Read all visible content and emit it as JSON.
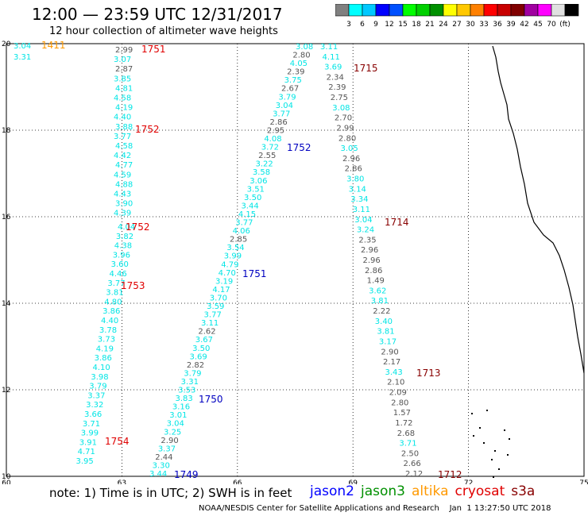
{
  "header": {
    "title": "12:00 — 23:59 UTC 12/31/2017",
    "subtitle": "12 hour collection of altimeter wave heights"
  },
  "legend": {
    "colors": [
      "#808080",
      "#00ffff",
      "#00c8ff",
      "#0000ff",
      "#0050ff",
      "#00ff00",
      "#00d000",
      "#009000",
      "#ffff00",
      "#ffc800",
      "#ff8000",
      "#ff0000",
      "#c80000",
      "#800000",
      "#a000a0",
      "#ff00ff",
      "#e0e0e0",
      "#000000"
    ],
    "labels": [
      "3",
      "6",
      "9",
      "12",
      "15",
      "18",
      "21",
      "24",
      "27",
      "30",
      "33",
      "36",
      "39",
      "42",
      "45",
      "70",
      "(ft)"
    ]
  },
  "axes": {
    "x_ticks": [
      "60",
      "63",
      "66",
      "69",
      "72",
      "75"
    ],
    "y_ticks": [
      "10",
      "12",
      "14",
      "16",
      "18",
      "20"
    ]
  },
  "track_colors": {
    "cyan": "#00e5e5",
    "gray": "#555555",
    "red": "#e00000",
    "darkred": "#880000",
    "blue": "#0000c0",
    "orange": "#ff9900"
  },
  "time_labels": [
    {
      "t": "1411",
      "c": "orange"
    },
    {
      "t": "1751",
      "c": "red"
    },
    {
      "t": "1752",
      "c": "red"
    },
    {
      "t": "1752",
      "c": "red"
    },
    {
      "t": "1753",
      "c": "red"
    },
    {
      "t": "1754",
      "c": "red"
    },
    {
      "t": "1715",
      "c": "darkred"
    },
    {
      "t": "1714",
      "c": "darkred"
    },
    {
      "t": "1713",
      "c": "darkred"
    },
    {
      "t": "1712",
      "c": "darkred"
    },
    {
      "t": "1752",
      "c": "blue"
    },
    {
      "t": "1751",
      "c": "blue"
    },
    {
      "t": "1750",
      "c": "blue"
    },
    {
      "t": "1749",
      "c": "blue"
    }
  ],
  "tracks": {
    "corner": [
      {
        "v": "3.04",
        "c": "cyan"
      },
      {
        "v": "3.31",
        "c": "cyan"
      }
    ],
    "a_top": [
      {
        "v": "2.99",
        "c": "gray"
      },
      {
        "v": "3.07",
        "c": "cyan"
      },
      {
        "v": "2.87",
        "c": "gray"
      },
      {
        "v": "3.85",
        "c": "cyan"
      },
      {
        "v": "4.81",
        "c": "cyan"
      },
      {
        "v": "4.58",
        "c": "cyan"
      },
      {
        "v": "4.19",
        "c": "cyan"
      },
      {
        "v": "4.40",
        "c": "cyan"
      },
      {
        "v": "3.88",
        "c": "cyan"
      },
      {
        "v": "3.77",
        "c": "cyan"
      },
      {
        "v": "4.58",
        "c": "cyan"
      },
      {
        "v": "4.42",
        "c": "cyan"
      },
      {
        "v": "4.77",
        "c": "cyan"
      },
      {
        "v": "4.59",
        "c": "cyan"
      },
      {
        "v": "4.88",
        "c": "cyan"
      },
      {
        "v": "4.43",
        "c": "cyan"
      },
      {
        "v": "3.90",
        "c": "cyan"
      },
      {
        "v": "4.39",
        "c": "cyan"
      }
    ],
    "a_bottom": [
      {
        "v": "4.04",
        "c": "cyan"
      },
      {
        "v": "3.82",
        "c": "cyan"
      },
      {
        "v": "4.38",
        "c": "cyan"
      },
      {
        "v": "3.96",
        "c": "cyan"
      },
      {
        "v": "3.60",
        "c": "cyan"
      },
      {
        "v": "4.46",
        "c": "cyan"
      },
      {
        "v": "3.77",
        "c": "cyan"
      },
      {
        "v": "3.81",
        "c": "cyan"
      },
      {
        "v": "4.80",
        "c": "cyan"
      },
      {
        "v": "3.86",
        "c": "cyan"
      },
      {
        "v": "4.40",
        "c": "cyan"
      },
      {
        "v": "3.78",
        "c": "cyan"
      },
      {
        "v": "3.73",
        "c": "cyan"
      },
      {
        "v": "4.19",
        "c": "cyan"
      },
      {
        "v": "3.86",
        "c": "cyan"
      },
      {
        "v": "4.10",
        "c": "cyan"
      },
      {
        "v": "3.98",
        "c": "cyan"
      },
      {
        "v": "3.79",
        "c": "cyan"
      },
      {
        "v": "3.37",
        "c": "cyan"
      },
      {
        "v": "3.32",
        "c": "cyan"
      },
      {
        "v": "3.66",
        "c": "cyan"
      },
      {
        "v": "3.71",
        "c": "cyan"
      },
      {
        "v": "3.99",
        "c": "cyan"
      },
      {
        "v": "3.91",
        "c": "cyan"
      },
      {
        "v": "4.71",
        "c": "cyan"
      },
      {
        "v": "3.95",
        "c": "cyan"
      }
    ],
    "b": [
      {
        "v": "3.08",
        "c": "cyan"
      },
      {
        "v": "2.80",
        "c": "gray"
      },
      {
        "v": "4.05",
        "c": "cyan"
      },
      {
        "v": "2.39",
        "c": "gray"
      },
      {
        "v": "3.75",
        "c": "cyan"
      },
      {
        "v": "2.67",
        "c": "gray"
      },
      {
        "v": "3.79",
        "c": "cyan"
      },
      {
        "v": "3.04",
        "c": "cyan"
      },
      {
        "v": "3.77",
        "c": "cyan"
      },
      {
        "v": "2.86",
        "c": "gray"
      },
      {
        "v": "2.95",
        "c": "gray"
      },
      {
        "v": "4.08",
        "c": "cyan"
      },
      {
        "v": "3.72",
        "c": "cyan"
      },
      {
        "v": "2.55",
        "c": "gray"
      },
      {
        "v": "3.22",
        "c": "cyan"
      },
      {
        "v": "3.58",
        "c": "cyan"
      },
      {
        "v": "3.06",
        "c": "cyan"
      },
      {
        "v": "3.51",
        "c": "cyan"
      },
      {
        "v": "3.50",
        "c": "cyan"
      },
      {
        "v": "3.44",
        "c": "cyan"
      },
      {
        "v": "4.15",
        "c": "cyan"
      },
      {
        "v": "3.77",
        "c": "cyan"
      },
      {
        "v": "4.06",
        "c": "cyan"
      },
      {
        "v": "2.85",
        "c": "gray"
      },
      {
        "v": "3.54",
        "c": "cyan"
      },
      {
        "v": "3.99",
        "c": "cyan"
      },
      {
        "v": "4.79",
        "c": "cyan"
      },
      {
        "v": "4.70",
        "c": "cyan"
      },
      {
        "v": "3.19",
        "c": "cyan"
      },
      {
        "v": "4.17",
        "c": "cyan"
      },
      {
        "v": "3.70",
        "c": "cyan"
      },
      {
        "v": "3.59",
        "c": "cyan"
      },
      {
        "v": "3.77",
        "c": "cyan"
      },
      {
        "v": "3.11",
        "c": "cyan"
      },
      {
        "v": "2.62",
        "c": "gray"
      },
      {
        "v": "3.67",
        "c": "cyan"
      },
      {
        "v": "3.50",
        "c": "cyan"
      },
      {
        "v": "3.69",
        "c": "cyan"
      },
      {
        "v": "2.82",
        "c": "gray"
      },
      {
        "v": "3.79",
        "c": "cyan"
      },
      {
        "v": "3.31",
        "c": "cyan"
      },
      {
        "v": "3.53",
        "c": "cyan"
      },
      {
        "v": "3.83",
        "c": "cyan"
      },
      {
        "v": "3.16",
        "c": "cyan"
      },
      {
        "v": "3.01",
        "c": "cyan"
      },
      {
        "v": "3.04",
        "c": "cyan"
      },
      {
        "v": "3.25",
        "c": "cyan"
      },
      {
        "v": "2.90",
        "c": "gray"
      },
      {
        "v": "3.37",
        "c": "cyan"
      },
      {
        "v": "2.44",
        "c": "gray"
      },
      {
        "v": "3.30",
        "c": "cyan"
      },
      {
        "v": "3.44",
        "c": "cyan"
      }
    ],
    "c": [
      {
        "v": "3.11",
        "c": "cyan"
      },
      {
        "v": "4.11",
        "c": "cyan"
      },
      {
        "v": "3.69",
        "c": "cyan"
      },
      {
        "v": "2.34",
        "c": "gray"
      },
      {
        "v": "2.39",
        "c": "gray"
      },
      {
        "v": "2.75",
        "c": "gray"
      },
      {
        "v": "3.08",
        "c": "cyan"
      },
      {
        "v": "2.70",
        "c": "gray"
      },
      {
        "v": "2.99",
        "c": "gray"
      },
      {
        "v": "2.80",
        "c": "gray"
      },
      {
        "v": "3.05",
        "c": "cyan"
      },
      {
        "v": "2.96",
        "c": "gray"
      },
      {
        "v": "2.86",
        "c": "gray"
      },
      {
        "v": "3.80",
        "c": "cyan"
      },
      {
        "v": "3.14",
        "c": "cyan"
      },
      {
        "v": "3.34",
        "c": "cyan"
      },
      {
        "v": "3.11",
        "c": "cyan"
      },
      {
        "v": "3.04",
        "c": "cyan"
      },
      {
        "v": "3.24",
        "c": "cyan"
      },
      {
        "v": "2.35",
        "c": "gray"
      },
      {
        "v": "2.96",
        "c": "gray"
      },
      {
        "v": "2.96",
        "c": "gray"
      },
      {
        "v": "2.86",
        "c": "gray"
      },
      {
        "v": "1.49",
        "c": "gray"
      },
      {
        "v": "3.62",
        "c": "cyan"
      },
      {
        "v": "3.81",
        "c": "cyan"
      },
      {
        "v": "2.22",
        "c": "gray"
      },
      {
        "v": "3.40",
        "c": "cyan"
      },
      {
        "v": "3.81",
        "c": "cyan"
      },
      {
        "v": "3.17",
        "c": "cyan"
      },
      {
        "v": "2.90",
        "c": "gray"
      },
      {
        "v": "2.17",
        "c": "gray"
      },
      {
        "v": "3.43",
        "c": "cyan"
      },
      {
        "v": "2.10",
        "c": "gray"
      },
      {
        "v": "2.09",
        "c": "gray"
      },
      {
        "v": "2.80",
        "c": "gray"
      },
      {
        "v": "1.57",
        "c": "gray"
      },
      {
        "v": "1.72",
        "c": "gray"
      },
      {
        "v": "2.68",
        "c": "gray"
      },
      {
        "v": "3.71",
        "c": "cyan"
      },
      {
        "v": "2.50",
        "c": "gray"
      },
      {
        "v": "2.66",
        "c": "gray"
      },
      {
        "v": "2.12",
        "c": "gray"
      }
    ]
  },
  "footer": {
    "note": "note: 1) Time is in UTC; 2) SWH is in feet",
    "satellites": [
      {
        "name": "jason2",
        "color": "#0000ff"
      },
      {
        "name": "jason3",
        "color": "#009000"
      },
      {
        "name": "altika",
        "color": "#ff9900"
      },
      {
        "name": "cryosat",
        "color": "#e00000"
      },
      {
        "name": "s3a",
        "color": "#880000"
      }
    ],
    "credit": "NOAA/NESDIS Center for Satellite Applications and Research",
    "generated": "Jan  1 13:27:50 UTC 2018"
  }
}
